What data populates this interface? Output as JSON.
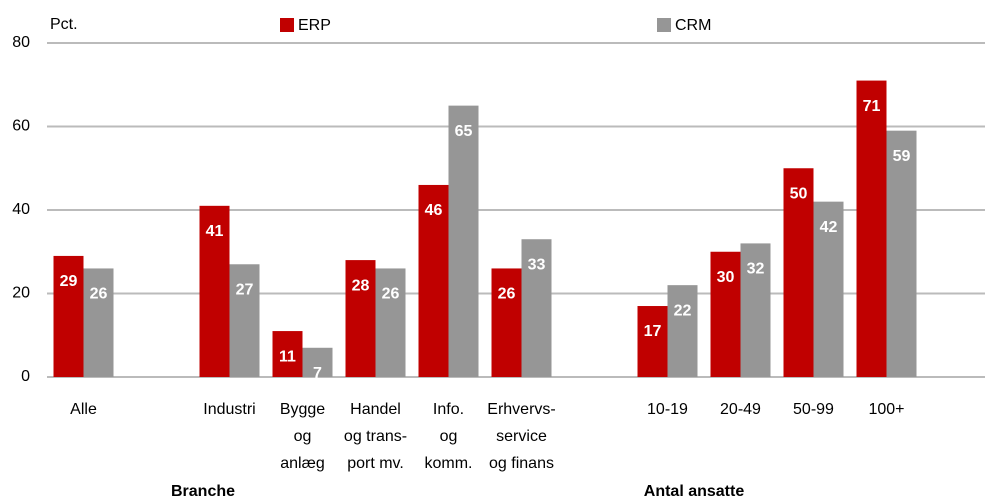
{
  "chart_data": {
    "type": "bar",
    "ylabel": "Pct.",
    "categories": [
      [
        "Alle"
      ],
      null,
      [
        "Industri"
      ],
      [
        "Bygge",
        "og",
        "anlæg"
      ],
      [
        "Handel",
        "og trans-",
        "port mv."
      ],
      [
        "Info.",
        "og",
        "komm."
      ],
      [
        "Erhvervs-",
        "service",
        "og finans"
      ],
      null,
      [
        "10-19"
      ],
      [
        "20-49"
      ],
      [
        "50-99"
      ],
      [
        "100+"
      ]
    ],
    "groups": [
      {
        "label": "Branche",
        "from": 2,
        "to": 6
      },
      {
        "label": "Antal ansatte",
        "from": 8,
        "to": 11
      }
    ],
    "series": [
      {
        "name": "ERP",
        "color": "#c00000",
        "values": [
          29,
          null,
          41,
          11,
          28,
          46,
          26,
          null,
          17,
          30,
          50,
          71
        ]
      },
      {
        "name": "CRM",
        "color": "#969696",
        "values": [
          26,
          null,
          27,
          7,
          26,
          65,
          33,
          null,
          22,
          32,
          42,
          59
        ]
      }
    ],
    "ylim": [
      0,
      80
    ],
    "yticks": [
      0,
      20,
      40,
      60,
      80
    ],
    "grid": true
  }
}
